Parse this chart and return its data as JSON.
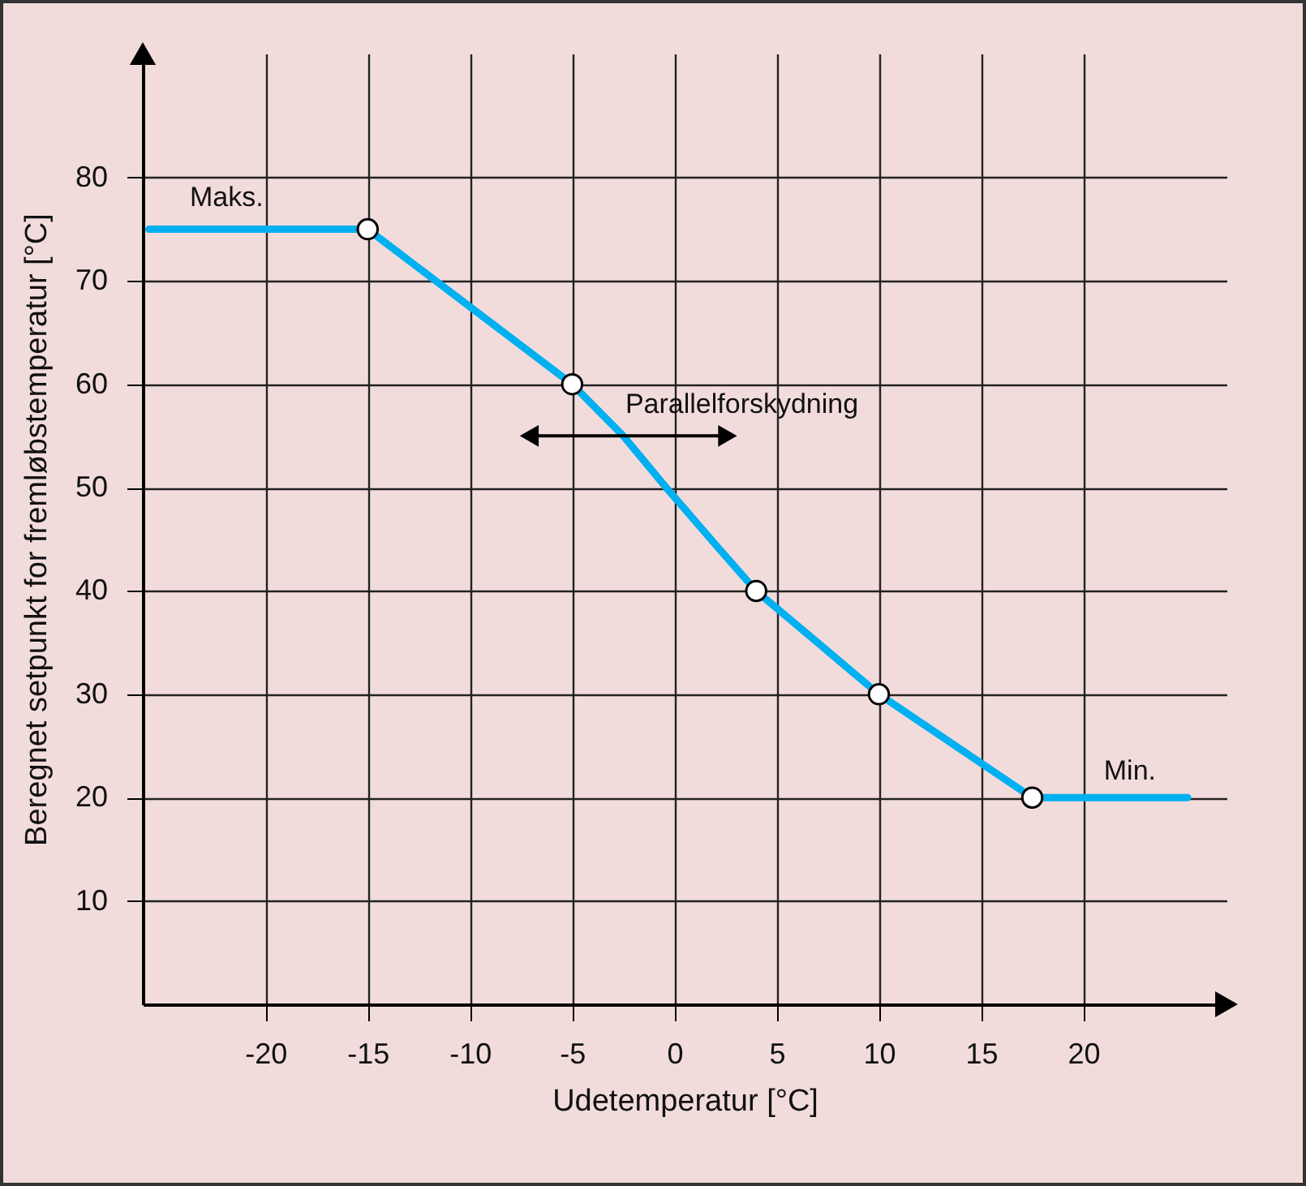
{
  "chart_data": {
    "type": "line",
    "xlabel": "Udetemperatur [°C]",
    "ylabel": "Beregnet setpunkt for fremløbstemperatur [°C]",
    "xlim": [
      -26,
      27
    ],
    "ylim": [
      0,
      92
    ],
    "xticks": [
      -20,
      -15,
      -10,
      -5,
      0,
      5,
      10,
      15,
      20
    ],
    "yticks": [
      10,
      20,
      30,
      40,
      50,
      60,
      70,
      80
    ],
    "grid": true,
    "series": [
      {
        "type": "line",
        "color": "#00b0f0",
        "x": [
          -25.7,
          -15,
          -5,
          -2.5,
          -0.4,
          2,
          4,
          10,
          17.5,
          25.1
        ],
        "values": [
          75,
          75,
          60,
          55,
          50,
          44.5,
          40,
          30,
          20,
          20
        ]
      },
      {
        "type": "scatter",
        "color": "#ffffff",
        "x": [
          -15,
          -5,
          4,
          10,
          17.5
        ],
        "values": [
          75,
          60,
          40,
          30,
          20
        ]
      }
    ],
    "annotations": [
      "Maks.",
      "Parallelforskydning",
      "Min."
    ]
  }
}
